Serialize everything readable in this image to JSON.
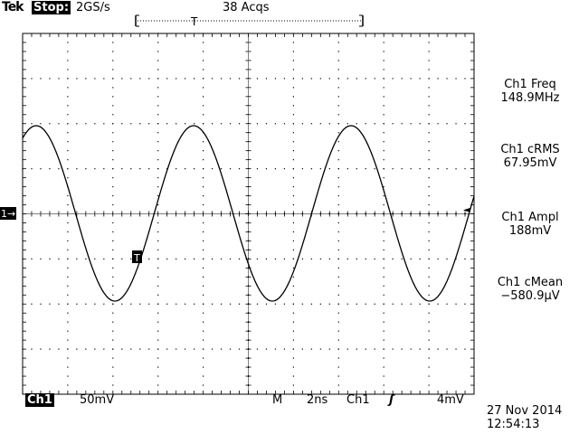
{
  "header": {
    "brand": "Tek",
    "run_state": "Stop:",
    "sample_rate": "2GS/s",
    "acquisitions": "38 Acqs",
    "trigger_marker": "T"
  },
  "channel_marker": "1→",
  "trigger_position_marker": "T",
  "trigger_level_marker": "◄",
  "measurements": [
    {
      "label": "Ch1 Freq",
      "value": "148.9MHz"
    },
    {
      "label": "Ch1 cRMS",
      "value": "67.95mV"
    },
    {
      "label": "Ch1 Ampl",
      "value": "188mV"
    },
    {
      "label": "Ch1 cMean",
      "value": "−580.9µV"
    }
  ],
  "bottom": {
    "channel": "Ch1",
    "volts_per_div": "50mV",
    "mode": "M",
    "time_per_div": "2ns",
    "trigger_source": "Ch1",
    "trigger_slope": "ʃ",
    "trigger_level": "4mV"
  },
  "datetime": {
    "date": "27 Nov 2014",
    "time": "12:54:13"
  },
  "colors": {
    "foreground": "#000000",
    "background": "#ffffff"
  }
}
